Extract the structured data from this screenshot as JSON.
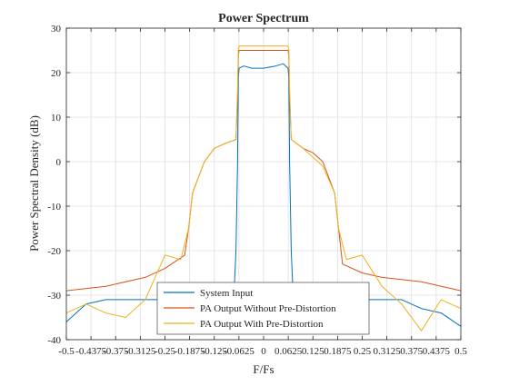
{
  "chart_data": {
    "type": "line",
    "title": "Power Spectrum",
    "xlabel": "F/Fs",
    "ylabel": "Power Spectral Density (dB)",
    "xlim": [
      -0.5,
      0.5
    ],
    "ylim": [
      -40,
      30
    ],
    "grid": true,
    "legend_position": "bottom-center",
    "x_ticks": [
      -0.5,
      -0.4375,
      -0.375,
      -0.3125,
      -0.25,
      -0.1875,
      -0.125,
      -0.0625,
      0,
      0.0625,
      0.125,
      0.1875,
      0.25,
      0.3125,
      0.375,
      0.4375,
      0.5
    ],
    "x_tick_labels": [
      "-0.5",
      "-0.4375",
      "-0.375",
      "-0.3125",
      "-0.25",
      "-0.1875",
      "-0.125",
      "-0.0625",
      "0",
      "0.0625",
      "0.125",
      "0.1875",
      "0.25",
      "0.3125",
      "0.375",
      "0.4375",
      "0.5"
    ],
    "y_ticks": [
      -40,
      -30,
      -20,
      -10,
      0,
      10,
      20,
      30
    ],
    "y_tick_labels": [
      "-40",
      "-30",
      "-20",
      "-10",
      "0",
      "10",
      "20",
      "30"
    ],
    "series": [
      {
        "name": "System Input",
        "color": "#0072BD",
        "x": [
          -0.5,
          -0.45,
          -0.4,
          -0.35,
          -0.3,
          -0.25,
          -0.2,
          -0.15,
          -0.1,
          -0.075,
          -0.07,
          -0.066,
          -0.064,
          -0.062,
          -0.05,
          -0.03,
          0,
          0.03,
          0.05,
          0.062,
          0.064,
          0.066,
          0.07,
          0.075,
          0.1,
          0.15,
          0.2,
          0.25,
          0.3,
          0.35,
          0.4,
          0.45,
          0.5
        ],
        "y": [
          -36,
          -32,
          -31,
          -31,
          -31,
          -31,
          -31,
          -31,
          -31,
          -30,
          -20,
          0,
          19,
          21,
          21.5,
          21,
          21,
          21.5,
          22,
          21,
          19,
          0,
          -20,
          -30,
          -31,
          -31,
          -31,
          -31,
          -31,
          -31,
          -33,
          -34,
          -37
        ]
      },
      {
        "name": "PA Output Without Pre-Distortion",
        "color": "#D95319",
        "x": [
          -0.5,
          -0.4,
          -0.3,
          -0.25,
          -0.2,
          -0.19,
          -0.18,
          -0.15,
          -0.125,
          -0.1,
          -0.07,
          -0.066,
          -0.064,
          -0.062,
          -0.05,
          0,
          0.05,
          0.062,
          0.064,
          0.066,
          0.07,
          0.1,
          0.125,
          0.15,
          0.18,
          0.19,
          0.2,
          0.25,
          0.3,
          0.4,
          0.5
        ],
        "y": [
          -29,
          -28,
          -26,
          -24,
          -21,
          -15,
          -7,
          0,
          3,
          4,
          5,
          15,
          24,
          25,
          25,
          25,
          25,
          25,
          24,
          15,
          5,
          3,
          2,
          0,
          -7,
          -15,
          -23,
          -25,
          -26,
          -27,
          -29
        ]
      },
      {
        "name": "PA Output With Pre-Distortion",
        "color": "#EDB120",
        "x": [
          -0.5,
          -0.45,
          -0.4,
          -0.35,
          -0.3,
          -0.25,
          -0.21,
          -0.19,
          -0.18,
          -0.15,
          -0.125,
          -0.1,
          -0.07,
          -0.066,
          -0.064,
          -0.062,
          -0.05,
          0,
          0.05,
          0.062,
          0.064,
          0.066,
          0.07,
          0.1,
          0.125,
          0.15,
          0.18,
          0.19,
          0.21,
          0.25,
          0.3,
          0.35,
          0.4,
          0.45,
          0.5
        ],
        "y": [
          -34,
          -32,
          -34,
          -35,
          -31,
          -21,
          -22,
          -15,
          -7,
          0,
          3,
          4,
          5,
          16,
          25,
          26,
          26,
          26,
          26,
          26,
          25,
          16,
          5,
          3,
          1,
          -1,
          -7,
          -15,
          -22,
          -21,
          -28,
          -32,
          -38,
          -31,
          -33
        ]
      }
    ]
  }
}
